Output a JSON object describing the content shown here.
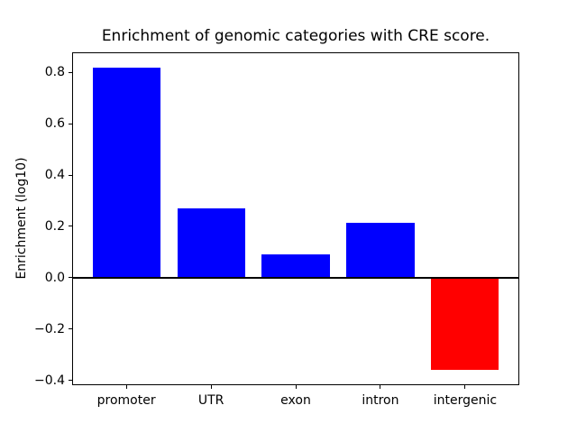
{
  "figure": {
    "background": "#ffffff",
    "text_color": "#000000",
    "axis_color": "#000000"
  },
  "chart_data": {
    "type": "bar",
    "title": "Enrichment of genomic categories with CRE score.",
    "xlabel": "",
    "ylabel": "Enrichment (log10)",
    "categories": [
      "promoter",
      "UTR",
      "exon",
      "intron",
      "intergenic"
    ],
    "values": [
      0.82,
      0.27,
      0.09,
      0.215,
      -0.36
    ],
    "bar_colors": [
      "#0000ff",
      "#0000ff",
      "#0000ff",
      "#0000ff",
      "#ff0000"
    ],
    "positive_color": "#0000ff",
    "negative_color": "#ff0000",
    "ylim": [
      -0.42,
      0.88
    ],
    "yticks": [
      0.8,
      0.6,
      0.4,
      0.2,
      0.0,
      -0.2,
      -0.4
    ],
    "ytick_labels": [
      "0.8",
      "0.6",
      "0.4",
      "0.2",
      "0.0",
      "−0.2",
      "−0.4"
    ],
    "bar_width_fraction": 0.8,
    "x_margin": 0.64,
    "zero_line": true,
    "grid": false,
    "legend_position": "none"
  }
}
